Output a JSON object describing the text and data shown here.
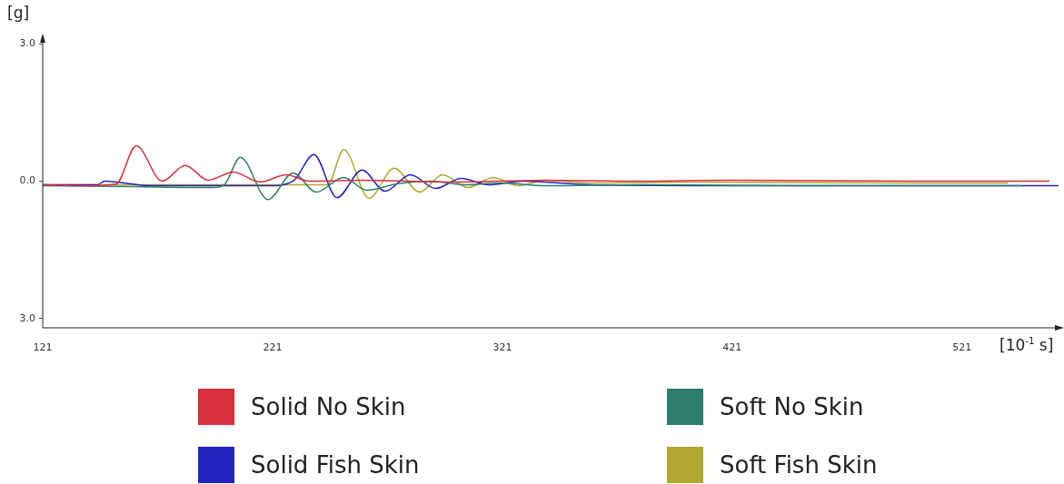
{
  "chart_data": {
    "type": "line",
    "ylabel": "[g]",
    "xlabel": "[10$^{-1}$ s]",
    "xlim": [
      121,
      563
    ],
    "xticks": [
      121,
      221,
      321,
      421,
      521
    ],
    "ylim": [
      -3.2,
      3.1
    ],
    "yticks": [
      {
        "value": 3,
        "label": "3.0"
      },
      {
        "value": 0,
        "label": "0.0"
      },
      {
        "value": -3,
        "label": "3.0"
      }
    ],
    "grid": false,
    "legend": "bottom",
    "marker": "none",
    "line_style": "solid",
    "series": [
      {
        "name": "Solid No Skin",
        "color": "#d8303c",
        "x": [
          121,
          140,
          153,
          161.7,
          173,
          183,
          193,
          204,
          215.5,
          227,
          237,
          260,
          300,
          340,
          380,
          420,
          500,
          559
        ],
        "values": [
          -0.08,
          -0.1,
          -0.06,
          0.77,
          0,
          0.34,
          0.02,
          0.2,
          -0.02,
          0.14,
          0,
          0.02,
          -0.02,
          0.02,
          0,
          0.02,
          0,
          0
        ]
      },
      {
        "name": "Soft No Skin",
        "color": "#2e7d6b",
        "x": [
          121,
          160,
          195,
          200,
          207,
          219,
          230,
          240,
          252,
          262,
          275,
          290,
          305,
          320,
          340,
          380,
          450,
          547
        ],
        "values": [
          -0.1,
          -0.12,
          -0.14,
          -0.08,
          0.52,
          -0.4,
          0.18,
          -0.24,
          0.08,
          -0.2,
          -0.06,
          0,
          -0.08,
          -0.04,
          -0.1,
          -0.08,
          -0.1,
          -0.1
        ]
      },
      {
        "name": "Solid Fish Skin",
        "color": "#2424c0",
        "x": [
          121,
          144.7,
          148,
          168,
          220,
          230,
          239,
          249,
          260,
          270,
          281,
          292,
          303,
          315,
          330,
          360,
          440,
          563
        ],
        "values": [
          -0.08,
          -0.08,
          0,
          -0.1,
          -0.1,
          0,
          0.58,
          -0.36,
          0.24,
          -0.22,
          0.14,
          -0.16,
          0.06,
          -0.08,
          0,
          -0.08,
          -0.1,
          -0.1
        ]
      },
      {
        "name": "Soft Fish Skin",
        "color": "#b0a830",
        "x": [
          121,
          200,
          245,
          252,
          263,
          274,
          285,
          295,
          306,
          317,
          328,
          340,
          360,
          400,
          500,
          541
        ],
        "values": [
          -0.08,
          -0.08,
          -0.08,
          0.69,
          -0.37,
          0.28,
          -0.24,
          0.14,
          -0.14,
          0.08,
          -0.1,
          0.02,
          -0.04,
          -0.02,
          -0.04,
          -0.04
        ]
      }
    ]
  }
}
